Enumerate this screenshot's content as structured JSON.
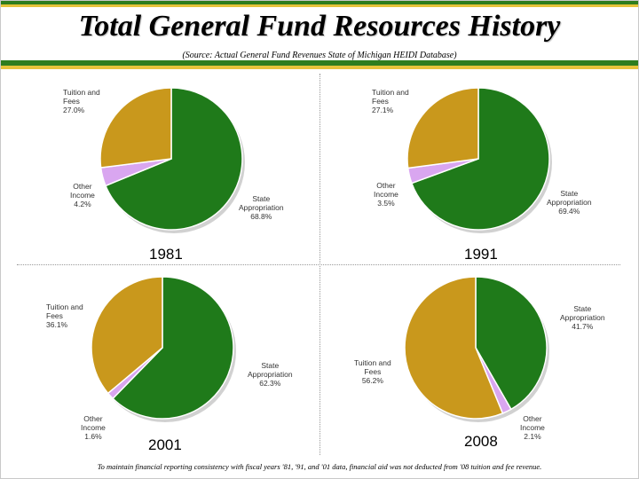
{
  "title": "Total General Fund Resources History",
  "source": "(Source: Actual General Fund Revenues State of Michigan HEIDI Database)",
  "footnote": "To maintain financial reporting consistency with fiscal years '81, '91, and '01 data, financial aid was not deducted from '08 tuition and fee revenue.",
  "colors": {
    "state_appropriation": "#1f7a1a",
    "other_income": "#d9a6f0",
    "tuition_and_fees": "#c9981c"
  },
  "chart_data": [
    {
      "type": "pie",
      "year": "1981",
      "slices": [
        {
          "name": "State Appropriation",
          "value": 68.8,
          "label_line1": "State",
          "label_line2": "Appropriation",
          "pct": "68.8%"
        },
        {
          "name": "Other Income",
          "value": 4.2,
          "label_line1": "Other",
          "label_line2": "Income",
          "pct": "4.2%"
        },
        {
          "name": "Tuition and Fees",
          "value": 27.0,
          "label_line1": "Tuition and",
          "label_line2": "Fees",
          "pct": "27.0%"
        }
      ]
    },
    {
      "type": "pie",
      "year": "1991",
      "slices": [
        {
          "name": "State Appropriation",
          "value": 69.4,
          "label_line1": "State",
          "label_line2": "Appropriation",
          "pct": "69.4%"
        },
        {
          "name": "Other Income",
          "value": 3.5,
          "label_line1": "Other",
          "label_line2": "Income",
          "pct": "3.5%"
        },
        {
          "name": "Tuition and Fees",
          "value": 27.1,
          "label_line1": "Tuition and",
          "label_line2": "Fees",
          "pct": "27.1%"
        }
      ]
    },
    {
      "type": "pie",
      "year": "2001",
      "slices": [
        {
          "name": "State Appropriation",
          "value": 62.3,
          "label_line1": "State",
          "label_line2": "Appropriation",
          "pct": "62.3%"
        },
        {
          "name": "Other Income",
          "value": 1.6,
          "label_line1": "Other",
          "label_line2": "Income",
          "pct": "1.6%"
        },
        {
          "name": "Tuition and Fees",
          "value": 36.1,
          "label_line1": "Tuition and",
          "label_line2": "Fees",
          "pct": "36.1%"
        }
      ]
    },
    {
      "type": "pie",
      "year": "2008",
      "slices": [
        {
          "name": "State Appropriation",
          "value": 41.7,
          "label_line1": "State",
          "label_line2": "Appropriation",
          "pct": "41.7%"
        },
        {
          "name": "Other Income",
          "value": 2.1,
          "label_line1": "Other",
          "label_line2": "Income",
          "pct": "2.1%"
        },
        {
          "name": "Tuition and Fees",
          "value": 56.2,
          "label_line1": "Tuition and",
          "label_line2": "Fees",
          "pct": "56.2%"
        }
      ]
    }
  ]
}
